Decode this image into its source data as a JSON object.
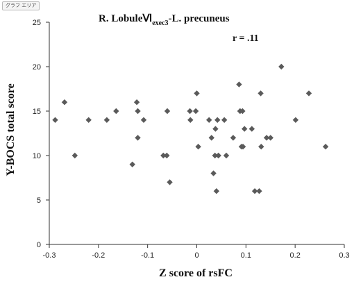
{
  "area_tag": "グラフ エリア",
  "chart_data": {
    "type": "scatter",
    "title": {
      "main": "R. LobuleⅥ",
      "subscript": "exec3",
      "suffix": "-L. precuneus"
    },
    "annotation": "r = .11",
    "xlabel": "Z score of rsFC",
    "ylabel": "Y-BOCS total score",
    "xlim": [
      -0.3,
      0.3
    ],
    "ylim": [
      0,
      25
    ],
    "x_ticks": [
      "-0.3",
      "-0.2",
      "-0.1",
      "0",
      "0.1",
      "0.2",
      "0.3"
    ],
    "y_ticks": [
      "0",
      "5",
      "10",
      "15",
      "20",
      "25"
    ],
    "grid": false,
    "marker": "diamond",
    "marker_color": "#5a5a5a",
    "points": [
      {
        "x": -0.288,
        "y": 14
      },
      {
        "x": -0.269,
        "y": 16
      },
      {
        "x": -0.248,
        "y": 10
      },
      {
        "x": -0.22,
        "y": 14
      },
      {
        "x": -0.183,
        "y": 14
      },
      {
        "x": -0.164,
        "y": 15
      },
      {
        "x": -0.131,
        "y": 9
      },
      {
        "x": -0.122,
        "y": 16
      },
      {
        "x": -0.12,
        "y": 12
      },
      {
        "x": -0.12,
        "y": 15
      },
      {
        "x": -0.108,
        "y": 14
      },
      {
        "x": -0.068,
        "y": 10
      },
      {
        "x": -0.061,
        "y": 10
      },
      {
        "x": -0.06,
        "y": 15
      },
      {
        "x": -0.055,
        "y": 7
      },
      {
        "x": -0.014,
        "y": 15
      },
      {
        "x": -0.013,
        "y": 14
      },
      {
        "x": -0.002,
        "y": 15
      },
      {
        "x": 0.0,
        "y": 17
      },
      {
        "x": 0.003,
        "y": 11
      },
      {
        "x": 0.025,
        "y": 14
      },
      {
        "x": 0.03,
        "y": 12
      },
      {
        "x": 0.034,
        "y": 8
      },
      {
        "x": 0.037,
        "y": 10
      },
      {
        "x": 0.038,
        "y": 13
      },
      {
        "x": 0.04,
        "y": 6
      },
      {
        "x": 0.042,
        "y": 14
      },
      {
        "x": 0.044,
        "y": 10
      },
      {
        "x": 0.056,
        "y": 14
      },
      {
        "x": 0.06,
        "y": 10
      },
      {
        "x": 0.074,
        "y": 12
      },
      {
        "x": 0.086,
        "y": 18
      },
      {
        "x": 0.088,
        "y": 15
      },
      {
        "x": 0.091,
        "y": 11
      },
      {
        "x": 0.093,
        "y": 15
      },
      {
        "x": 0.094,
        "y": 11
      },
      {
        "x": 0.097,
        "y": 13
      },
      {
        "x": 0.112,
        "y": 13
      },
      {
        "x": 0.118,
        "y": 6
      },
      {
        "x": 0.127,
        "y": 6
      },
      {
        "x": 0.13,
        "y": 17
      },
      {
        "x": 0.131,
        "y": 11
      },
      {
        "x": 0.142,
        "y": 12
      },
      {
        "x": 0.15,
        "y": 12
      },
      {
        "x": 0.172,
        "y": 20
      },
      {
        "x": 0.201,
        "y": 14
      },
      {
        "x": 0.228,
        "y": 17
      },
      {
        "x": 0.262,
        "y": 11
      }
    ]
  }
}
